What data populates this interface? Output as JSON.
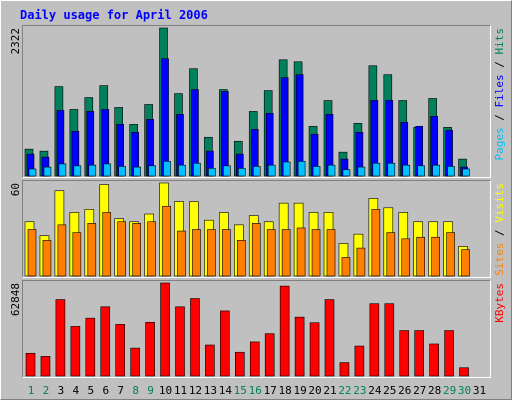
{
  "chart_data": [
    {
      "type": "bar",
      "title": "Daily usage for April 2006",
      "separator": "/",
      "ylim": [
        0,
        2322
      ],
      "yticks": [
        2322
      ],
      "series": [
        {
          "name": "Hits",
          "color": "#00805c",
          "values": [
            421,
            390,
            1403,
            1044,
            1231,
            1418,
            1075,
            810,
            1122,
            2322,
            1293,
            1683,
            608,
            1356,
            545,
            1013,
            1340,
            1823,
            1792,
            779,
            1184,
            374,
            826,
            1730,
            1590,
            1184,
            763,
            1216,
            763,
            265,
            0
          ]
        },
        {
          "name": "Files",
          "color": "#0000ff",
          "values": [
            343,
            296,
            1029,
            702,
            1014,
            1045,
            811,
            686,
            889,
            1840,
            967,
            1357,
            390,
            1326,
            343,
            733,
            983,
            1544,
            1591,
            655,
            967,
            265,
            686,
            1186,
            1186,
            842,
            780,
            936,
            718,
            140,
            0
          ]
        },
        {
          "name": "Pages",
          "color": "#00c0ff",
          "values": [
            110,
            140,
            190,
            160,
            170,
            190,
            150,
            140,
            160,
            230,
            170,
            200,
            120,
            160,
            120,
            150,
            170,
            220,
            230,
            150,
            170,
            100,
            140,
            200,
            200,
            170,
            160,
            170,
            150,
            110,
            0
          ]
        }
      ]
    },
    {
      "type": "bar",
      "separator": "/",
      "ylim": [
        0,
        60
      ],
      "yticks": [
        60
      ],
      "series": [
        {
          "name": "Visits",
          "color": "#ffff00",
          "values": [
            35,
            26,
            55,
            41,
            43,
            59,
            37,
            35,
            40,
            60,
            48,
            48,
            36,
            41,
            33,
            39,
            35,
            47,
            47,
            41,
            41,
            21,
            27,
            50,
            44,
            41,
            35,
            35,
            35,
            19,
            0
          ]
        },
        {
          "name": "Sites",
          "color": "#ff8000",
          "values": [
            30,
            23,
            33,
            28,
            34,
            41,
            35,
            34,
            35,
            45,
            29,
            30,
            30,
            30,
            23,
            34,
            30,
            30,
            31,
            30,
            30,
            12,
            18,
            43,
            28,
            24,
            25,
            25,
            28,
            17,
            0
          ]
        }
      ]
    },
    {
      "type": "bar",
      "ylim": [
        0,
        62848
      ],
      "yticks": [
        62848
      ],
      "categories": [
        "1",
        "2",
        "3",
        "4",
        "5",
        "6",
        "7",
        "8",
        "9",
        "10",
        "11",
        "12",
        "13",
        "14",
        "15",
        "16",
        "17",
        "18",
        "19",
        "20",
        "21",
        "22",
        "23",
        "24",
        "25",
        "26",
        "27",
        "28",
        "29",
        "30",
        "31"
      ],
      "highlight_categories": [
        "1",
        "2",
        "8",
        "9",
        "15",
        "16",
        "22",
        "23",
        "29",
        "30"
      ],
      "highlight_color": "#00805c",
      "series": [
        {
          "name": "KBytes",
          "color": "#ff0000",
          "values": [
            15360,
            13260,
            51650,
            33500,
            39090,
            46770,
            34900,
            18850,
            36300,
            62848,
            46770,
            52350,
            20940,
            43970,
            16050,
            23030,
            28620,
            60730,
            39790,
            36000,
            51650,
            9070,
            20240,
            48860,
            48860,
            30710,
            30710,
            21640,
            30710,
            5580,
            0
          ]
        }
      ]
    }
  ]
}
